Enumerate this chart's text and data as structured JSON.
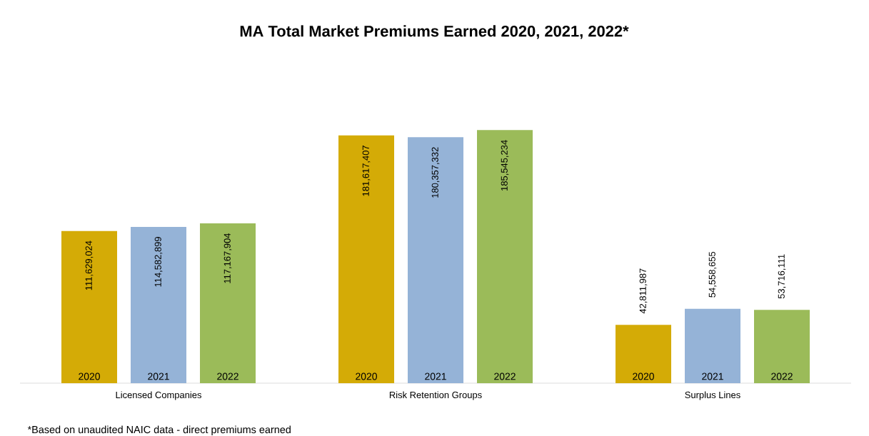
{
  "chart_data": {
    "type": "bar",
    "title": "MA Total Market Premiums Earned 2020, 2021, 2022*",
    "categories": [
      "Licensed Companies",
      "Risk Retention Groups",
      "Surplus Lines"
    ],
    "series": [
      {
        "name": "2020",
        "color": "#d4ab06",
        "values": [
          111629024,
          181617407,
          42811987
        ],
        "value_labels": [
          "111,629,024",
          "181,617,407",
          "42,811,987"
        ]
      },
      {
        "name": "2021",
        "color": "#95b3d7",
        "values": [
          114582899,
          180357332,
          54558655
        ],
        "value_labels": [
          "114,582,899",
          "180,357,332",
          "54,558,655"
        ]
      },
      {
        "name": "2022",
        "color": "#9bbb59",
        "values": [
          117167904,
          185545234,
          53716111
        ],
        "value_labels": [
          "117,167,904",
          "185,545,234",
          "53,716,111"
        ]
      }
    ],
    "tick_labels": "x",
    "data_labels": true,
    "annotations": [
      "*Based on unaudited NAIC data - direct premiums earned"
    ]
  }
}
